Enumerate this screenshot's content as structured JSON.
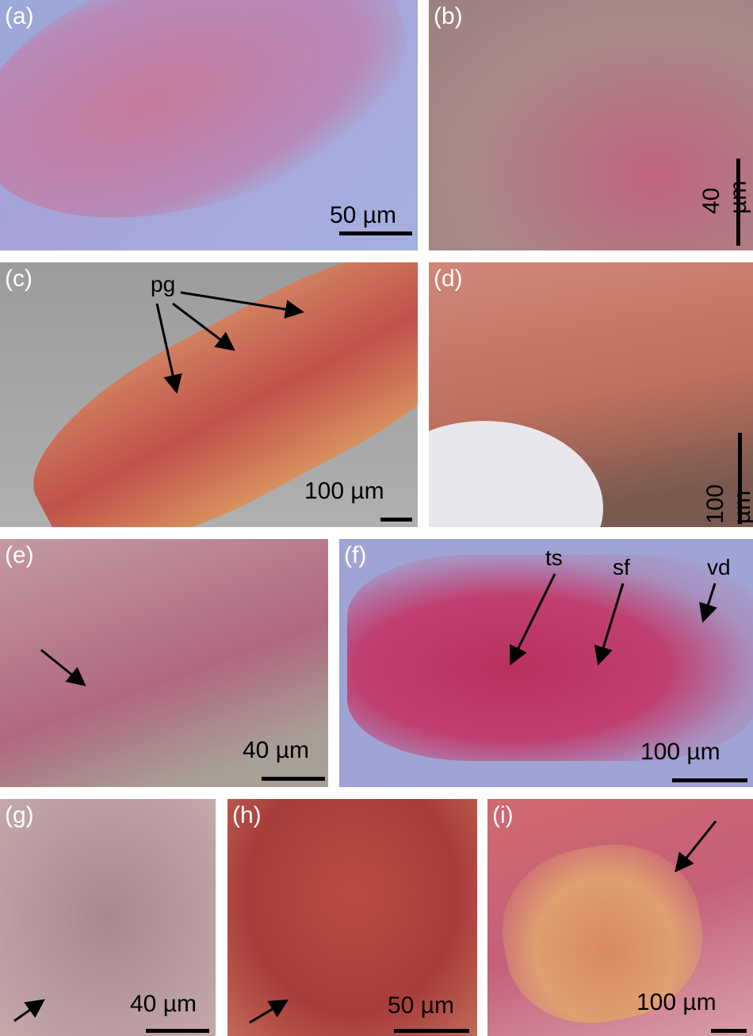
{
  "panels": [
    {
      "label": "(a)",
      "scale": "50 µm",
      "colors": [
        "#9aa8d8",
        "#b88ab8",
        "#c47a9a"
      ]
    },
    {
      "label": "(b)",
      "scale": "40 µm",
      "colors": [
        "#a88a88",
        "#b47a84",
        "#c06480"
      ]
    },
    {
      "label": "(c)",
      "scale": "100 µm",
      "annotations": [
        "pg"
      ],
      "colors": [
        "#9c9c9c",
        "#c0504a",
        "#d08060"
      ]
    },
    {
      "label": "(d)",
      "scale": "100 µm",
      "colors": [
        "#c0705e",
        "#d08678",
        "#7a5a50"
      ]
    },
    {
      "label": "(e)",
      "scale": "40 µm",
      "colors": [
        "#c39aa2",
        "#b06880",
        "#a8a096"
      ]
    },
    {
      "label": "(f)",
      "scale": "100 µm",
      "annotations": [
        "ts",
        "sf",
        "vd"
      ],
      "colors": [
        "#a0a4d4",
        "#b83060",
        "#a890c0"
      ]
    },
    {
      "label": "(g)",
      "scale": "40 µm",
      "colors": [
        "#b89ca0",
        "#a88890",
        "#c4a8aa"
      ]
    },
    {
      "label": "(h)",
      "scale": "50 µm",
      "colors": [
        "#a83c3a",
        "#b84c44",
        "#c06a58"
      ]
    },
    {
      "label": "(i)",
      "scale": "100 µm",
      "colors": [
        "#d06a70",
        "#d88a60",
        "#c46078"
      ]
    }
  ]
}
